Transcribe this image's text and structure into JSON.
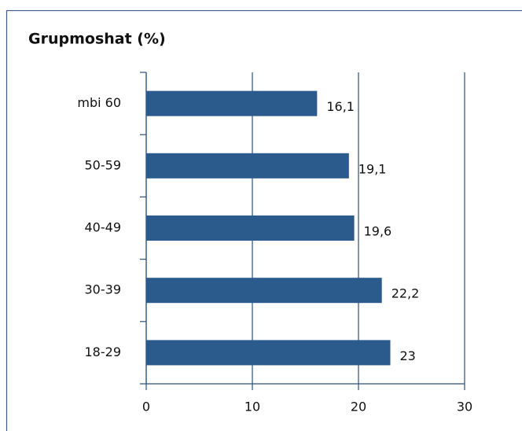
{
  "chart_data": {
    "type": "hbar",
    "title": "Grupmoshat (%)",
    "categories": [
      "mbi 60",
      "50-59",
      "40-49",
      "30-39",
      "18-29"
    ],
    "values": [
      16.1,
      19.1,
      19.6,
      22.2,
      23
    ],
    "value_labels": [
      "16,1",
      "19,1",
      "19,6",
      "22,2",
      "23"
    ],
    "color": "#2a5b8c",
    "xlim": [
      0,
      30
    ],
    "xticks": [
      0,
      10,
      20,
      30
    ],
    "grid": true
  }
}
